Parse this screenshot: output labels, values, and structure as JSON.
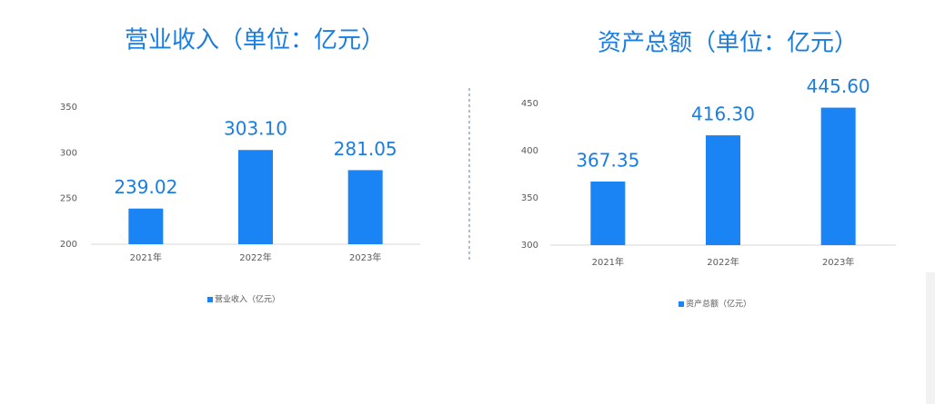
{
  "chart_data": [
    {
      "type": "bar",
      "title": "营业收入（单位：亿元）",
      "categories": [
        "2021年",
        "2022年",
        "2023年"
      ],
      "series": [
        {
          "name": "营业收入（亿元）",
          "color": "#1a84f5",
          "values": [
            239.02,
            303.1,
            281.05
          ],
          "value_labels": [
            "239.02",
            "303.10",
            "281.05"
          ]
        }
      ],
      "ylim": [
        200,
        350
      ],
      "yticks": [
        200,
        250,
        300,
        350
      ],
      "grid": false,
      "legend": "bottom"
    },
    {
      "type": "bar",
      "title": "资产总额（单位：亿元）",
      "categories": [
        "2021年",
        "2022年",
        "2023年"
      ],
      "series": [
        {
          "name": "资产总额（亿元）",
          "color": "#1a84f5",
          "values": [
            367.35,
            416.3,
            445.6
          ],
          "value_labels": [
            "367.35",
            "416.30",
            "445.60"
          ]
        }
      ],
      "ylim": [
        300,
        450
      ],
      "yticks": [
        300,
        350,
        400,
        450
      ],
      "grid": false,
      "legend": "bottom"
    }
  ]
}
